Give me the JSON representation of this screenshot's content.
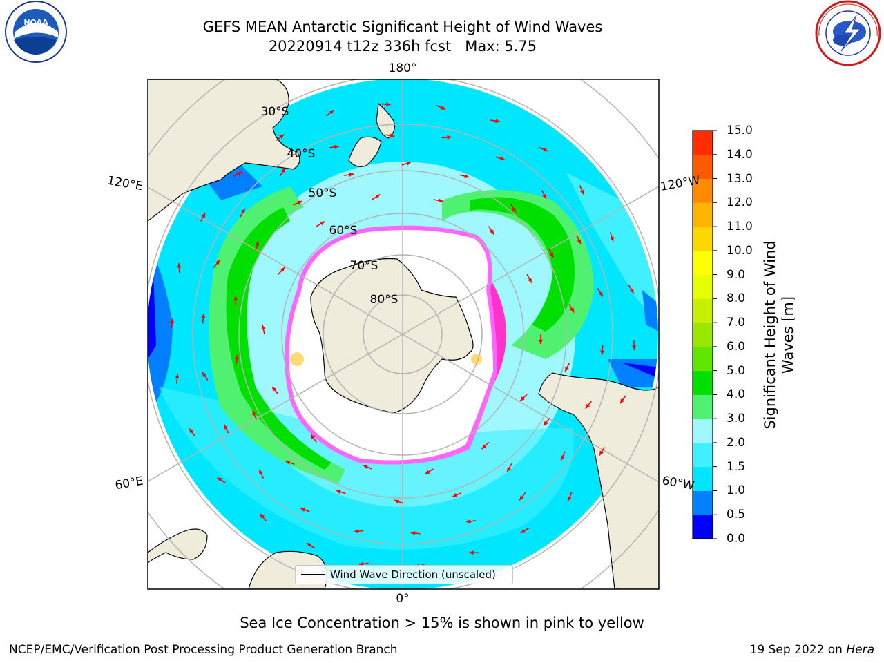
{
  "title": {
    "line1": "GEFS MEAN Antarctic Significant Height of Wind Waves",
    "line2": "20220914 t12z 336h fcst   Max: 5.75"
  },
  "map": {
    "projection": "south polar stereographic",
    "latitude_labels": [
      "30°S",
      "40°S",
      "50°S",
      "60°S",
      "70°S",
      "80°S"
    ],
    "longitude_labels": {
      "top": "180°",
      "upper_left": "120°E",
      "upper_right": "120°W",
      "lower_left": "60°E",
      "lower_right": "60°W",
      "bottom": "0°"
    },
    "land_color": "#efecdc",
    "ice_edge_colors": [
      "#ff33cc",
      "#ff66ff",
      "#ffcc33"
    ],
    "arrow_color": "#ff0000"
  },
  "colorbar": {
    "label": "Significant Height of Wind Waves [m]",
    "ticks": [
      "15.0",
      "14.0",
      "13.0",
      "12.0",
      "11.0",
      "10.0",
      "9.0",
      "8.0",
      "7.0",
      "6.0",
      "5.0",
      "4.0",
      "3.0",
      "2.0",
      "1.5",
      "1.0",
      "0.5",
      "0.0"
    ],
    "colors_bottom_to_top": [
      "#0000ff",
      "#0080ff",
      "#00e6ff",
      "#40f0ff",
      "#a0f8ff",
      "#50f070",
      "#00e000",
      "#60e600",
      "#99e600",
      "#c6f000",
      "#e6ff00",
      "#ffff00",
      "#ffd700",
      "#ffb400",
      "#ff8c00",
      "#ff5a00",
      "#ff2d00"
    ]
  },
  "legend": {
    "label": "Wind Wave Direction (unscaled)"
  },
  "logos": {
    "left": "NOAA",
    "right": "NATIONAL WEATHER SERVICE"
  },
  "footnote": "Sea Ice Concentration > 15% is shown in pink to yellow",
  "credit": "NCEP/EMC/Verification Post Processing Product Generation Branch",
  "date": {
    "text": "19 Sep 2022 on ",
    "host": "Hera"
  }
}
